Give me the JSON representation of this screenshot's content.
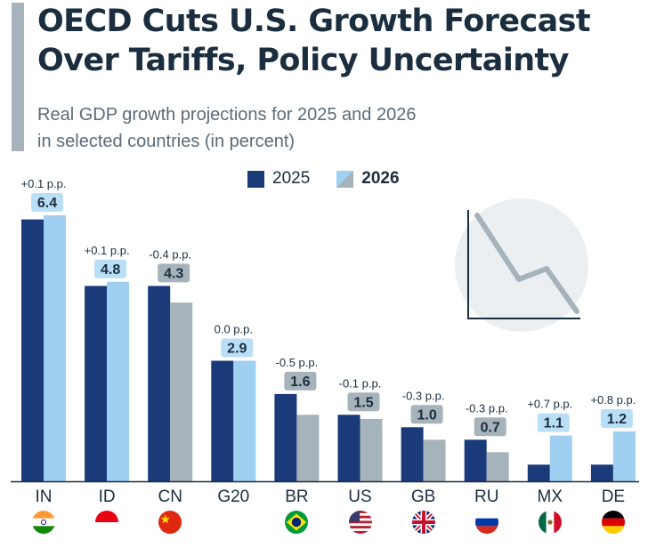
{
  "header": {
    "title_line1": "OECD Cuts U.S. Growth Forecast",
    "title_line2": "Over Tariffs, Policy Uncertainty",
    "subtitle_line1": "Real GDP growth projections for 2025 and 2026",
    "subtitle_line2": "in selected countries (in percent)"
  },
  "colors": {
    "bar_2025": "#1a3a7a",
    "bar_2026_increase": "#9fd0f2",
    "bar_2026_decrease": "#a7b3ba",
    "label_increase_bg": "#b9dff7",
    "label_decrease_bg": "#a7b3ba",
    "title": "#1b2e3f"
  },
  "chart_data": {
    "type": "bar",
    "categories": [
      "IN",
      "ID",
      "CN",
      "G20",
      "BR",
      "US",
      "GB",
      "RU",
      "MX",
      "DE"
    ],
    "series": [
      {
        "name": "2025",
        "values": [
          6.3,
          4.7,
          4.7,
          2.9,
          2.1,
          1.6,
          1.3,
          1.0,
          0.4,
          0.4
        ]
      },
      {
        "name": "2026",
        "values": [
          6.4,
          4.8,
          4.3,
          2.9,
          1.6,
          1.5,
          1.0,
          0.7,
          1.1,
          1.2
        ]
      }
    ],
    "value_labels_2026": [
      "6.4",
      "4.8",
      "4.3",
      "2.9",
      "1.6",
      "1.5",
      "1.0",
      "0.7",
      "1.1",
      "1.2"
    ],
    "change_labels": [
      "+0.1 p.p.",
      "+0.1 p.p.",
      "-0.4 p.p.",
      "0.0 p.p.",
      "-0.5 p.p.",
      "-0.1 p.p.",
      "-0.3 p.p.",
      "-0.3 p.p.",
      "+0.7 p.p.",
      "+0.8 p.p."
    ],
    "legend": {
      "position": "top-center",
      "items": [
        "2025",
        "2026"
      ]
    },
    "ylim": [
      0,
      6.6
    ],
    "grid": false
  },
  "flags": [
    "india",
    "indonesia",
    "china",
    "none",
    "brazil",
    "usa",
    "uk",
    "russia",
    "mexico",
    "germany"
  ],
  "decoration": "declining-trend-line-icon"
}
